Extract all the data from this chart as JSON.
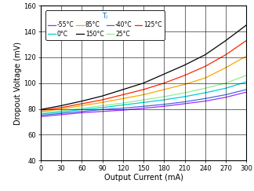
{
  "title": "Tⱼ",
  "xlabel": "Output Current (mA)",
  "ylabel": "Dropout Voltage (mV)",
  "xlim": [
    0,
    300
  ],
  "ylim": [
    40,
    160
  ],
  "xticks": [
    0,
    30,
    60,
    90,
    120,
    150,
    180,
    210,
    240,
    270,
    300
  ],
  "yticks": [
    40,
    60,
    80,
    100,
    120,
    140,
    160
  ],
  "series": [
    {
      "label": "-55°C",
      "color": "#9B30FF",
      "x": [
        0,
        10,
        30,
        60,
        90,
        120,
        150,
        180,
        210,
        240,
        270,
        300
      ],
      "y": [
        74,
        74.5,
        75.5,
        77,
        78,
        79,
        80.5,
        82,
        84,
        86,
        89,
        93
      ]
    },
    {
      "label": "-40°C",
      "color": "#4169E1",
      "x": [
        0,
        10,
        30,
        60,
        90,
        120,
        150,
        180,
        210,
        240,
        270,
        300
      ],
      "y": [
        75,
        75.5,
        76.5,
        78,
        79.5,
        80.5,
        82,
        83.5,
        85.5,
        88,
        91,
        95
      ]
    },
    {
      "label": "0°C",
      "color": "#00CED1",
      "x": [
        0,
        10,
        30,
        60,
        90,
        120,
        150,
        180,
        210,
        240,
        270,
        300
      ],
      "y": [
        76,
        76.5,
        77.5,
        79.5,
        81,
        83,
        85,
        87,
        89.5,
        92.5,
        96,
        101
      ]
    },
    {
      "label": "25°C",
      "color": "#90EE90",
      "x": [
        0,
        10,
        30,
        60,
        90,
        120,
        150,
        180,
        210,
        240,
        270,
        300
      ],
      "y": [
        77,
        77.5,
        78.5,
        80.5,
        82.5,
        84.5,
        87,
        89.5,
        92.5,
        96,
        100,
        106
      ]
    },
    {
      "label": "85°C",
      "color": "#FFA500",
      "x": [
        0,
        10,
        30,
        60,
        90,
        120,
        150,
        180,
        210,
        240,
        270,
        300
      ],
      "y": [
        78,
        78.5,
        80,
        82.5,
        85,
        88,
        91,
        95,
        99,
        104,
        112,
        121
      ]
    },
    {
      "label": "125°C",
      "color": "#FF2400",
      "x": [
        0,
        10,
        30,
        60,
        90,
        120,
        150,
        180,
        210,
        240,
        270,
        300
      ],
      "y": [
        79,
        79.5,
        81,
        84,
        87,
        91,
        95,
        100,
        106,
        113,
        122,
        133
      ]
    },
    {
      "label": "150°C",
      "color": "#000000",
      "x": [
        0,
        10,
        30,
        60,
        90,
        120,
        150,
        180,
        210,
        240,
        270,
        300
      ],
      "y": [
        79.5,
        80.5,
        82.5,
        86,
        90,
        95,
        100,
        107,
        114,
        122,
        133,
        145
      ]
    }
  ],
  "legend_title_fontsize": 6.5,
  "legend_fontsize": 5.5,
  "axis_fontsize": 7,
  "tick_fontsize": 6,
  "title_color": "#0070C0"
}
